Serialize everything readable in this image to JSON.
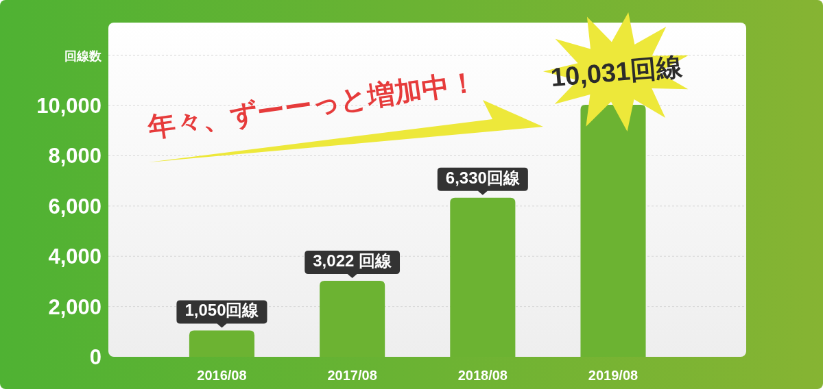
{
  "chart_data": {
    "type": "bar",
    "ylabel": "回線数",
    "categories": [
      "2016/08",
      "2017/08",
      "2018/08",
      "2019/08"
    ],
    "values": [
      1050,
      3022,
      6330,
      10031
    ],
    "value_labels": [
      "1,050回線",
      "3,022 回線",
      "6,330回線",
      "10,031回線"
    ],
    "color": "#6cb332",
    "ylim": [
      0,
      13300
    ],
    "yticks": [
      0,
      {
        "value": 2000,
        "label": "2,000"
      },
      {
        "value": 4000,
        "label": "4,000"
      },
      {
        "value": 6000,
        "label": "6,000"
      },
      {
        "value": 8000,
        "label": "8,000"
      },
      {
        "value": 10000,
        "label": "10,000"
      },
      {
        "value": 12000,
        "label": null
      }
    ],
    "grid": "y",
    "annotations": [
      "年々、ずーーっと増加中！"
    ]
  }
}
